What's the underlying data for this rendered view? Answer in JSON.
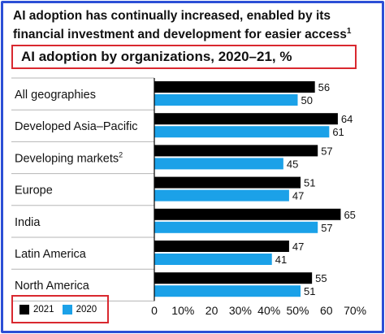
{
  "header": {
    "title": "AI adoption has continually increased, enabled by its financial investment and development for easier access",
    "title_footnote": "1",
    "subtitle": "AI adoption by organizations, 2020–21, %"
  },
  "legend": {
    "items": [
      {
        "label": "2021",
        "color": "#000000"
      },
      {
        "label": "2020",
        "color": "#1ba1e8"
      }
    ]
  },
  "chart_data": {
    "type": "bar",
    "orientation": "horizontal",
    "title": "AI adoption by organizations, 2020–21, %",
    "categories": [
      "All geographies",
      "Developed Asia–Pacific",
      "Developing markets",
      "Europe",
      "India",
      "Latin America",
      "North America"
    ],
    "category_footnotes": [
      "",
      "",
      "2",
      "",
      "",
      "",
      ""
    ],
    "series": [
      {
        "name": "2021",
        "color": "#000000",
        "values": [
          56,
          64,
          57,
          51,
          65,
          47,
          55
        ]
      },
      {
        "name": "2020",
        "color": "#1ba1e8",
        "values": [
          50,
          61,
          45,
          47,
          57,
          41,
          51
        ]
      }
    ],
    "xlim": [
      0,
      70
    ],
    "x_ticks": [
      "0",
      "10%",
      "20",
      "30%",
      "40%",
      "50%",
      "60",
      "70%"
    ],
    "legend_position": "bottom-left",
    "grid": false
  }
}
